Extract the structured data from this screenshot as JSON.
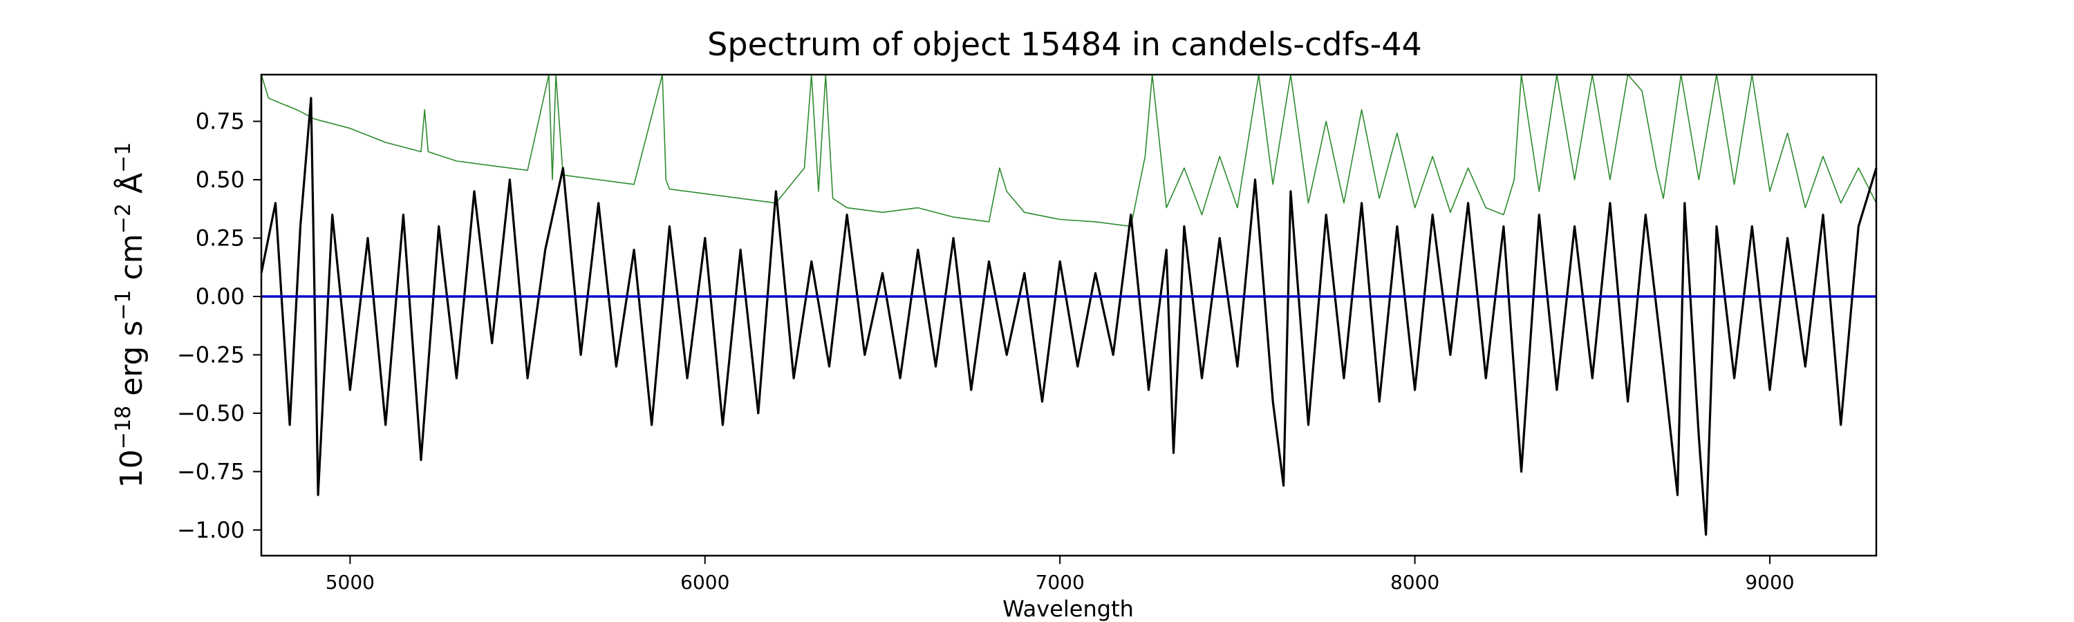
{
  "chart_data": {
    "type": "line",
    "title": "Spectrum of object 15484 in candels-cdfs-44",
    "xlabel": "Wavelength",
    "ylabel": {
      "base": "10",
      "exp": "−18",
      "text": " erg s",
      "s_exp": "−1",
      "cm": " cm",
      "cm_exp": "−2",
      "angstrom": " Å",
      "a_exp": "−1"
    },
    "xlim": [
      4750,
      9300
    ],
    "ylim": [
      -1.11,
      0.95
    ],
    "xticks": [
      5000,
      6000,
      7000,
      8000,
      9000
    ],
    "xtick_labels": [
      "5000",
      "6000",
      "7000",
      "8000",
      "9000"
    ],
    "yticks": [
      0.75,
      0.5,
      0.25,
      0.0,
      -0.25,
      -0.5,
      -0.75,
      -1.0
    ],
    "ytick_labels": [
      "0.75",
      "0.50",
      "0.25",
      "0.00",
      "−0.25",
      "−0.50",
      "−0.75",
      "−1.00"
    ],
    "grid": false,
    "series": [
      {
        "role": "flux",
        "color": "#000000",
        "x": [
          4750,
          4790,
          4830,
          4860,
          4890,
          4910,
          4950,
          5000,
          5050,
          5100,
          5150,
          5200,
          5250,
          5300,
          5350,
          5400,
          5450,
          5500,
          5550,
          5600,
          5650,
          5700,
          5750,
          5800,
          5850,
          5900,
          5950,
          6000,
          6050,
          6100,
          6150,
          6200,
          6250,
          6300,
          6350,
          6400,
          6450,
          6500,
          6550,
          6600,
          6650,
          6700,
          6750,
          6800,
          6850,
          6900,
          6950,
          7000,
          7050,
          7100,
          7150,
          7200,
          7250,
          7300,
          7320,
          7350,
          7400,
          7450,
          7500,
          7550,
          7600,
          7630,
          7650,
          7700,
          7750,
          7800,
          7850,
          7900,
          7950,
          8000,
          8050,
          8100,
          8150,
          8200,
          8250,
          8300,
          8350,
          8400,
          8450,
          8500,
          8550,
          8600,
          8650,
          8700,
          8740,
          8760,
          8800,
          8820,
          8850,
          8900,
          8950,
          9000,
          9050,
          9100,
          9150,
          9200,
          9250,
          9300
        ],
        "y": [
          0.1,
          0.4,
          -0.55,
          0.3,
          0.85,
          -0.85,
          0.35,
          -0.4,
          0.25,
          -0.55,
          0.35,
          -0.7,
          0.3,
          -0.35,
          0.45,
          -0.2,
          0.5,
          -0.35,
          0.2,
          0.55,
          -0.25,
          0.4,
          -0.3,
          0.2,
          -0.55,
          0.3,
          -0.35,
          0.25,
          -0.55,
          0.2,
          -0.5,
          0.45,
          -0.35,
          0.15,
          -0.3,
          0.35,
          -0.25,
          0.1,
          -0.35,
          0.2,
          -0.3,
          0.25,
          -0.4,
          0.15,
          -0.25,
          0.1,
          -0.45,
          0.15,
          -0.3,
          0.1,
          -0.25,
          0.35,
          -0.4,
          0.2,
          -0.67,
          0.3,
          -0.35,
          0.25,
          -0.3,
          0.5,
          -0.45,
          -0.81,
          0.45,
          -0.55,
          0.35,
          -0.35,
          0.4,
          -0.45,
          0.3,
          -0.4,
          0.35,
          -0.25,
          0.4,
          -0.35,
          0.3,
          -0.75,
          0.35,
          -0.4,
          0.3,
          -0.35,
          0.4,
          -0.45,
          0.35,
          -0.3,
          -0.85,
          0.4,
          -0.6,
          -1.02,
          0.3,
          -0.35,
          0.3,
          -0.4,
          0.25,
          -0.3,
          0.35,
          -0.55,
          0.3,
          0.55
        ]
      },
      {
        "role": "error",
        "color": "#2e8b2e",
        "x": [
          4750,
          4770,
          4800,
          4850,
          4900,
          5000,
          5100,
          5200,
          5210,
          5220,
          5300,
          5400,
          5500,
          5560,
          5570,
          5580,
          5600,
          5700,
          5800,
          5880,
          5890,
          5900,
          6000,
          6100,
          6200,
          6280,
          6300,
          6320,
          6340,
          6360,
          6400,
          6500,
          6600,
          6700,
          6800,
          6830,
          6850,
          6900,
          7000,
          7100,
          7200,
          7240,
          7260,
          7300,
          7350,
          7400,
          7450,
          7500,
          7560,
          7600,
          7650,
          7700,
          7750,
          7800,
          7850,
          7900,
          7950,
          8000,
          8050,
          8100,
          8150,
          8200,
          8250,
          8280,
          8300,
          8350,
          8400,
          8450,
          8500,
          8550,
          8600,
          8640,
          8680,
          8700,
          8750,
          8800,
          8850,
          8900,
          8950,
          9000,
          9050,
          9100,
          9150,
          9200,
          9250,
          9300
        ],
        "y": [
          0.95,
          0.85,
          0.83,
          0.8,
          0.76,
          0.72,
          0.66,
          0.62,
          0.8,
          0.62,
          0.58,
          0.56,
          0.54,
          0.95,
          0.5,
          0.95,
          0.52,
          0.5,
          0.48,
          0.95,
          0.5,
          0.46,
          0.44,
          0.42,
          0.4,
          0.55,
          0.95,
          0.45,
          0.95,
          0.42,
          0.38,
          0.36,
          0.38,
          0.34,
          0.32,
          0.55,
          0.45,
          0.36,
          0.33,
          0.32,
          0.3,
          0.6,
          0.95,
          0.38,
          0.55,
          0.35,
          0.6,
          0.38,
          0.95,
          0.48,
          0.95,
          0.4,
          0.75,
          0.4,
          0.8,
          0.42,
          0.7,
          0.38,
          0.6,
          0.36,
          0.55,
          0.38,
          0.35,
          0.5,
          0.95,
          0.45,
          0.95,
          0.5,
          0.95,
          0.5,
          0.95,
          0.88,
          0.55,
          0.42,
          0.95,
          0.5,
          0.95,
          0.48,
          0.95,
          0.45,
          0.7,
          0.38,
          0.6,
          0.4,
          0.55,
          0.4
        ]
      },
      {
        "role": "zero-line",
        "color": "#0000cc",
        "x": [
          4750,
          9300
        ],
        "y": [
          0,
          0
        ]
      }
    ]
  }
}
